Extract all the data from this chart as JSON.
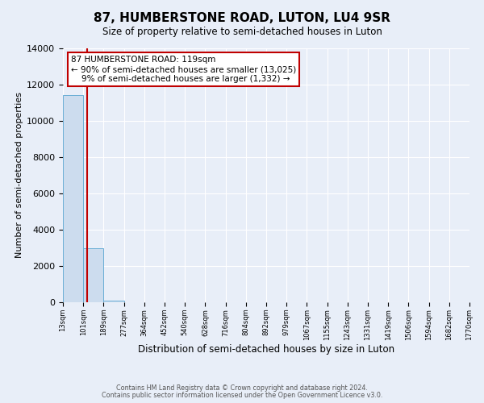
{
  "title": "87, HUMBERSTONE ROAD, LUTON, LU4 9SR",
  "subtitle": "Size of property relative to semi-detached houses in Luton",
  "xlabel": "Distribution of semi-detached houses by size in Luton",
  "ylabel": "Number of semi-detached properties",
  "bin_edges": [
    13,
    101,
    189,
    277,
    364,
    452,
    540,
    628,
    716,
    804,
    892,
    979,
    1067,
    1155,
    1243,
    1331,
    1419,
    1506,
    1594,
    1682,
    1770
  ],
  "bin_counts": [
    11400,
    3000,
    100,
    5,
    2,
    1,
    1,
    0,
    0,
    0,
    0,
    0,
    0,
    0,
    0,
    0,
    0,
    0,
    0,
    0
  ],
  "bar_color": "#ccdcee",
  "bar_edgecolor": "#6aaed6",
  "property_size": 119,
  "property_line_color": "#c00000",
  "ylim": [
    0,
    14000
  ],
  "yticks": [
    0,
    2000,
    4000,
    6000,
    8000,
    10000,
    12000,
    14000
  ],
  "annotation_line1": "87 HUMBERSTONE ROAD: 119sqm",
  "annotation_line2": "← 90% of semi-detached houses are smaller (13,025)",
  "annotation_line3": "    9% of semi-detached houses are larger (1,332) →",
  "annotation_box_facecolor": "#ffffff",
  "annotation_box_edgecolor": "#c00000",
  "footer_line1": "Contains HM Land Registry data © Crown copyright and database right 2024.",
  "footer_line2": "Contains public sector information licensed under the Open Government Licence v3.0.",
  "background_color": "#e8eef8",
  "grid_color": "#ffffff",
  "tick_labels": [
    "13sqm",
    "101sqm",
    "189sqm",
    "277sqm",
    "364sqm",
    "452sqm",
    "540sqm",
    "628sqm",
    "716sqm",
    "804sqm",
    "892sqm",
    "979sqm",
    "1067sqm",
    "1155sqm",
    "1243sqm",
    "1331sqm",
    "1419sqm",
    "1506sqm",
    "1594sqm",
    "1682sqm",
    "1770sqm"
  ]
}
